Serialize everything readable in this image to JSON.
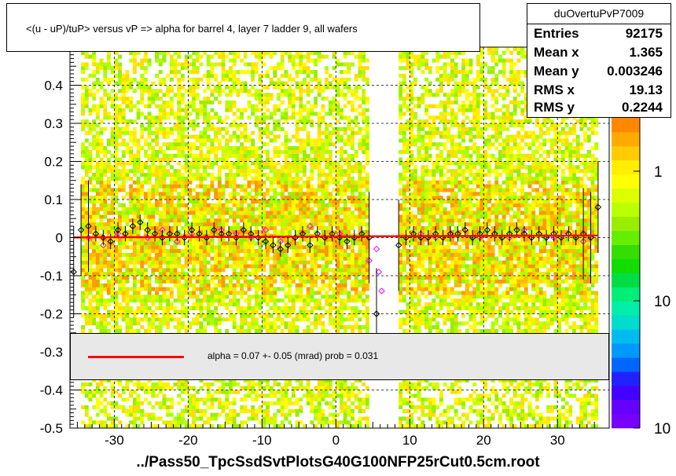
{
  "histogram": {
    "name": "duOvertuPvP7009",
    "title": "<(u - uP)/tuP>  versus   vP =>  alpha for barrel 4, layer 7 ladder 9, all wafers",
    "file_label": "../Pass50_TpcSsdSvtPlotsG40G100NFP25rCut0.5cm.root"
  },
  "stats": [
    {
      "key": "Entries",
      "value": "92175"
    },
    {
      "key": "Mean x",
      "value": "1.365"
    },
    {
      "key": "Mean y",
      "value": "0.003246"
    },
    {
      "key": "RMS x",
      "value": "19.13"
    },
    {
      "key": "RMS y",
      "value": "0.2244"
    }
  ],
  "fit": {
    "label": "alpha =    0.07 +-  0.05 (mrad) prob = 0.031",
    "line_color": "#ff0000"
  },
  "colors": {
    "frame": "#000000",
    "fit_line": "#ff0000",
    "profile_black": "#000000",
    "profile_magenta": "#ff00ff",
    "fit_box": "#e8e8e8"
  },
  "chart_data": {
    "type": "heatmap",
    "title": "<(u - uP)/tuP>  versus   vP =>  alpha for barrel 4, layer 7 ladder 9, all wafers",
    "xlabel": "",
    "ylabel": "",
    "xlim": [
      -36,
      37
    ],
    "ylim": [
      -0.5,
      0.5
    ],
    "x_ticks": [
      -30,
      -20,
      -10,
      0,
      10,
      20,
      30
    ],
    "y_ticks": [
      -0.5,
      -0.4,
      -0.3,
      -0.2,
      -0.1,
      0,
      0.1,
      0.2,
      0.3,
      0.4
    ],
    "grid": true,
    "colorbar": {
      "labels": [
        "1",
        "10",
        "10"
      ],
      "scale": "log"
    },
    "empty_x_ranges": [
      [
        4.5,
        8.5
      ]
    ],
    "fit_line": {
      "slope": 7e-05,
      "intercept": 0.003
    },
    "profile_black": {
      "x": [
        -35.5,
        -34.5,
        -33.5,
        -32.5,
        -31.5,
        -30.5,
        -29.5,
        -28.5,
        -27.5,
        -26.5,
        -25.5,
        -24.5,
        -23.5,
        -22.5,
        -21.5,
        -20.5,
        -19.5,
        -18.5,
        -17.5,
        -16.5,
        -15.5,
        -14.5,
        -13.5,
        -12.5,
        -11.5,
        -10.5,
        -9.5,
        -8.5,
        -7.5,
        -6.5,
        -5.5,
        -4.5,
        -3.5,
        -2.5,
        -1.5,
        -0.5,
        0.5,
        1.5,
        2.5,
        3.5,
        4.5,
        5.5,
        8.5,
        9.5,
        10.5,
        11.5,
        12.5,
        13.5,
        14.5,
        15.5,
        16.5,
        17.5,
        18.5,
        19.5,
        20.5,
        21.5,
        22.5,
        23.5,
        24.5,
        25.5,
        26.5,
        27.5,
        28.5,
        29.5,
        30.5,
        31.5,
        32.5,
        33.5,
        34.5,
        35.5
      ],
      "y": [
        -0.09,
        0.02,
        0.03,
        0.01,
        0.0,
        -0.01,
        0.02,
        0.01,
        0.03,
        0.04,
        0.02,
        0.01,
        0.0,
        0.01,
        0.01,
        0.0,
        0.02,
        0.01,
        0.0,
        0.02,
        0.01,
        0.01,
        0.0,
        0.02,
        0.01,
        0.0,
        -0.01,
        -0.02,
        -0.03,
        -0.02,
        0.0,
        0.01,
        -0.02,
        0.01,
        0.0,
        0.01,
        0.0,
        -0.01,
        0.0,
        0.01,
        0.0,
        -0.2,
        -0.02,
        0.0,
        0.01,
        0.0,
        0.0,
        0.01,
        0.0,
        0.01,
        0.01,
        0.02,
        0.0,
        0.01,
        0.02,
        0.01,
        0.0,
        0.01,
        0.02,
        0.01,
        0.0,
        0.01,
        0.0,
        0.01,
        0.0,
        0.01,
        0.0,
        0.01,
        0.0,
        0.08
      ]
    },
    "profile_magenta": {
      "x": [
        -33.5,
        -31.5,
        -29.5,
        -27.5,
        -25.5,
        -23.5,
        -21.5,
        -19.5,
        -17.5,
        -15.5,
        -13.5,
        -11.5,
        -9.5,
        -7.5,
        -5.5,
        -3.5,
        -1.5,
        0.5,
        2.5,
        4.5,
        5.5,
        5.8,
        6.2,
        9.5,
        11.5,
        13.5,
        15.5,
        17.5,
        19.5,
        21.5,
        23.5,
        25.5,
        27.5,
        29.5,
        31.5,
        33.5
      ],
      "y": [
        0.0,
        -0.02,
        0.01,
        0.03,
        0.0,
        0.02,
        -0.01,
        0.01,
        0.0,
        0.02,
        0.01,
        0.0,
        0.02,
        -0.01,
        0.0,
        0.03,
        0.0,
        0.01,
        0.0,
        -0.06,
        -0.03,
        -0.09,
        -0.14,
        0.0,
        0.01,
        0.0,
        0.01,
        0.02,
        0.0,
        0.01,
        0.0,
        0.02,
        0.01,
        0.0,
        0.01,
        -0.01
      ]
    }
  }
}
